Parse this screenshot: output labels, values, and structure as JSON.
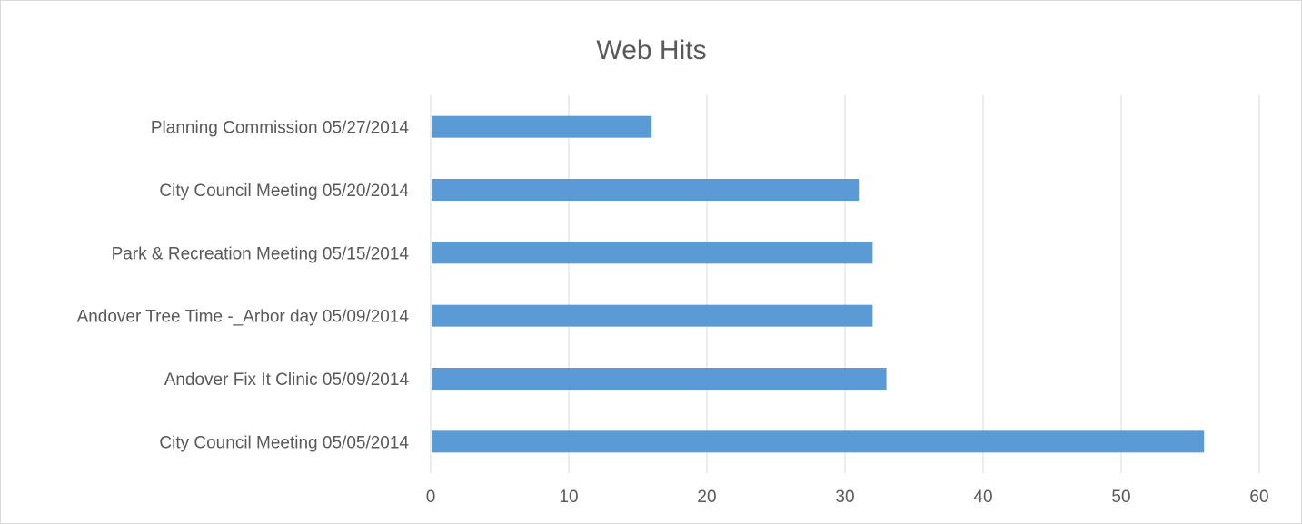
{
  "chart_data": {
    "type": "bar",
    "orientation": "horizontal",
    "title": "Web Hits",
    "xlabel": "",
    "ylabel": "",
    "categories": [
      "Planning Commission 05/27/2014",
      "City Council Meeting 05/20/2014",
      "Park & Recreation Meeting 05/15/2014",
      "Andover Tree Time -_Arbor day 05/09/2014",
      "Andover Fix It Clinic 05/09/2014",
      "City Council Meeting 05/05/2014"
    ],
    "values": [
      16,
      31,
      32,
      32,
      33,
      56
    ],
    "xlim": [
      0,
      60
    ],
    "ticks": [
      "0",
      "10",
      "20",
      "30",
      "40",
      "50",
      "60"
    ],
    "grid": true,
    "legend": "none",
    "bar_color": "#5b9bd5"
  }
}
